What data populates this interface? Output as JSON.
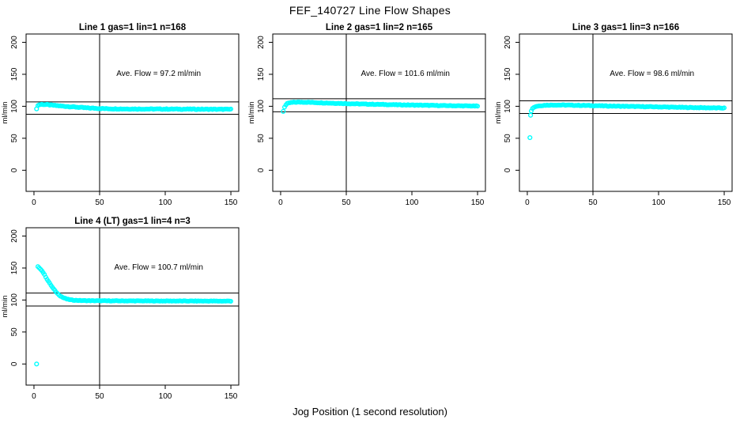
{
  "page": {
    "main_title": "FEF_140727  Line Flow Shapes",
    "x_axis_label": "Jog Position (1 second resolution)"
  },
  "chart_data": [
    {
      "type": "scatter",
      "title": "Line 1 gas=1 lin=1 n=168",
      "annotation": "Ave. Flow =  97.2  ml/min",
      "ave_flow": 97.2,
      "ylabel": "ml/min",
      "x_ticks": [
        0,
        50,
        100,
        150
      ],
      "y_ticks": [
        0,
        50,
        100,
        150,
        200
      ],
      "xlim": [
        -6,
        156
      ],
      "ylim": [
        -33,
        213
      ],
      "hlines": [
        106.9,
        87.5
      ],
      "vline": 50,
      "marker_color": "#00ffff",
      "noise": 1.2,
      "outliers": [
        [
          2,
          96
        ]
      ],
      "trend": [
        [
          3,
          101
        ],
        [
          4,
          102.5
        ],
        [
          6,
          103
        ],
        [
          10,
          102.5
        ],
        [
          15,
          101.5
        ],
        [
          20,
          100.5
        ],
        [
          30,
          99
        ],
        [
          40,
          97.5
        ],
        [
          50,
          96.5
        ],
        [
          60,
          96
        ],
        [
          80,
          95.7
        ],
        [
          100,
          95.6
        ],
        [
          120,
          95.5
        ],
        [
          150,
          95.2
        ]
      ]
    },
    {
      "type": "scatter",
      "title": "Line 2 gas=1 lin=2 n=165",
      "annotation": "Ave. Flow =  101.6  ml/min",
      "ave_flow": 101.6,
      "ylabel": "ml/min",
      "x_ticks": [
        0,
        50,
        100,
        150
      ],
      "y_ticks": [
        0,
        50,
        100,
        150,
        200
      ],
      "xlim": [
        -6,
        156
      ],
      "ylim": [
        -33,
        213
      ],
      "hlines": [
        111.8,
        91.4
      ],
      "vline": 50,
      "marker_color": "#00ffff",
      "noise": 1.0,
      "outliers": [
        [
          2,
          92
        ]
      ],
      "trend": [
        [
          3,
          99
        ],
        [
          4,
          102
        ],
        [
          5,
          104
        ],
        [
          7,
          105.5
        ],
        [
          10,
          106.3
        ],
        [
          15,
          106.5
        ],
        [
          20,
          106.3
        ],
        [
          30,
          105.5
        ],
        [
          40,
          104.8
        ],
        [
          50,
          104.2
        ],
        [
          60,
          103.6
        ],
        [
          80,
          102.7
        ],
        [
          100,
          101.9
        ],
        [
          120,
          101.2
        ],
        [
          150,
          100.3
        ]
      ]
    },
    {
      "type": "scatter",
      "title": "Line 3 gas=1 lin=3 n=166",
      "annotation": "Ave. Flow =  98.6  ml/min",
      "ave_flow": 98.6,
      "ylabel": "ml/min",
      "x_ticks": [
        0,
        50,
        100,
        150
      ],
      "y_ticks": [
        0,
        50,
        100,
        150,
        200
      ],
      "xlim": [
        -6,
        156
      ],
      "ylim": [
        -33,
        213
      ],
      "hlines": [
        108.5,
        88.7
      ],
      "vline": 50,
      "marker_color": "#00ffff",
      "noise": 1.0,
      "outliers": [
        [
          2,
          51
        ],
        [
          2.5,
          86
        ]
      ],
      "trend": [
        [
          3,
          93
        ],
        [
          4,
          96.5
        ],
        [
          5,
          98.5
        ],
        [
          7,
          100
        ],
        [
          10,
          101
        ],
        [
          15,
          101.7
        ],
        [
          20,
          102
        ],
        [
          30,
          101.8
        ],
        [
          40,
          101.4
        ],
        [
          50,
          101
        ],
        [
          60,
          100.5
        ],
        [
          80,
          99.7
        ],
        [
          100,
          99
        ],
        [
          120,
          98.2
        ],
        [
          150,
          97.2
        ]
      ]
    },
    {
      "type": "scatter",
      "title": "Line 4 (LT) gas=1 lin=4 n=3",
      "annotation": "Ave. Flow =  100.7  ml/min",
      "ave_flow": 100.7,
      "ylabel": "ml/min",
      "x_ticks": [
        0,
        50,
        100,
        150
      ],
      "y_ticks": [
        0,
        50,
        100,
        150,
        200
      ],
      "xlim": [
        -6,
        156
      ],
      "ylim": [
        -33,
        213
      ],
      "hlines": [
        110.8,
        90.6
      ],
      "vline": 50,
      "marker_color": "#00ffff",
      "noise": 0.8,
      "outliers": [
        [
          2,
          0
        ]
      ],
      "trend": [
        [
          3,
          152
        ],
        [
          4,
          150.5
        ],
        [
          5,
          148.5
        ],
        [
          6,
          146
        ],
        [
          7,
          143
        ],
        [
          8,
          139.5
        ],
        [
          9,
          136
        ],
        [
          10,
          132.5
        ],
        [
          12,
          126
        ],
        [
          14,
          120
        ],
        [
          16,
          114.5
        ],
        [
          18,
          110
        ],
        [
          20,
          106.5
        ],
        [
          22,
          104
        ],
        [
          25,
          101.5
        ],
        [
          28,
          100.3
        ],
        [
          30,
          99.8
        ],
        [
          35,
          99.2
        ],
        [
          40,
          99
        ],
        [
          50,
          98.8
        ],
        [
          60,
          98.7
        ],
        [
          80,
          98.6
        ],
        [
          100,
          98.5
        ],
        [
          120,
          98.4
        ],
        [
          150,
          98.3
        ]
      ]
    }
  ]
}
